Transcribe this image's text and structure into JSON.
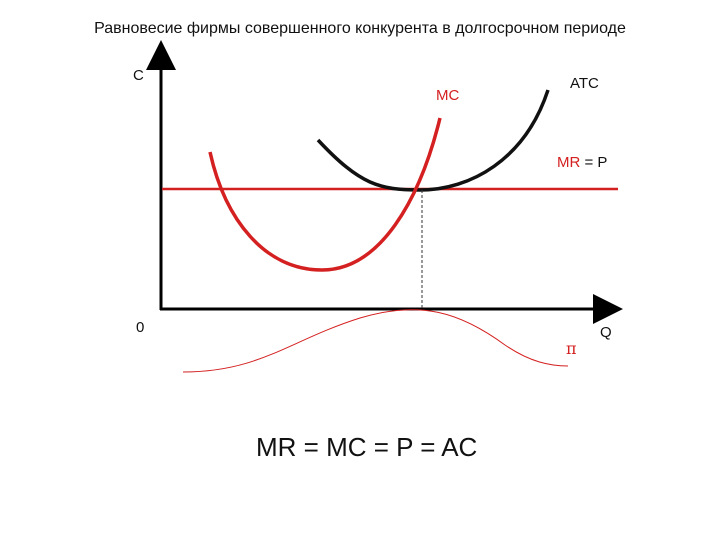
{
  "title": "Равновесие фирмы совершенного конкурента в долгосрочном периоде",
  "labels": {
    "y_axis": "C",
    "origin": "0",
    "x_axis": "Q",
    "mc": "MC",
    "atc": "ATC",
    "mr_p_first": "MR",
    "mr_p_rest": " = P",
    "profit": "π",
    "equation": "MR = MC = P = AC"
  },
  "colors": {
    "axis": "#000000",
    "mc_curve": "#d42020",
    "atc_curve": "#111111",
    "mr_line": "#d42020",
    "profit_curve": "#d42020",
    "guide": "#333333"
  }
}
